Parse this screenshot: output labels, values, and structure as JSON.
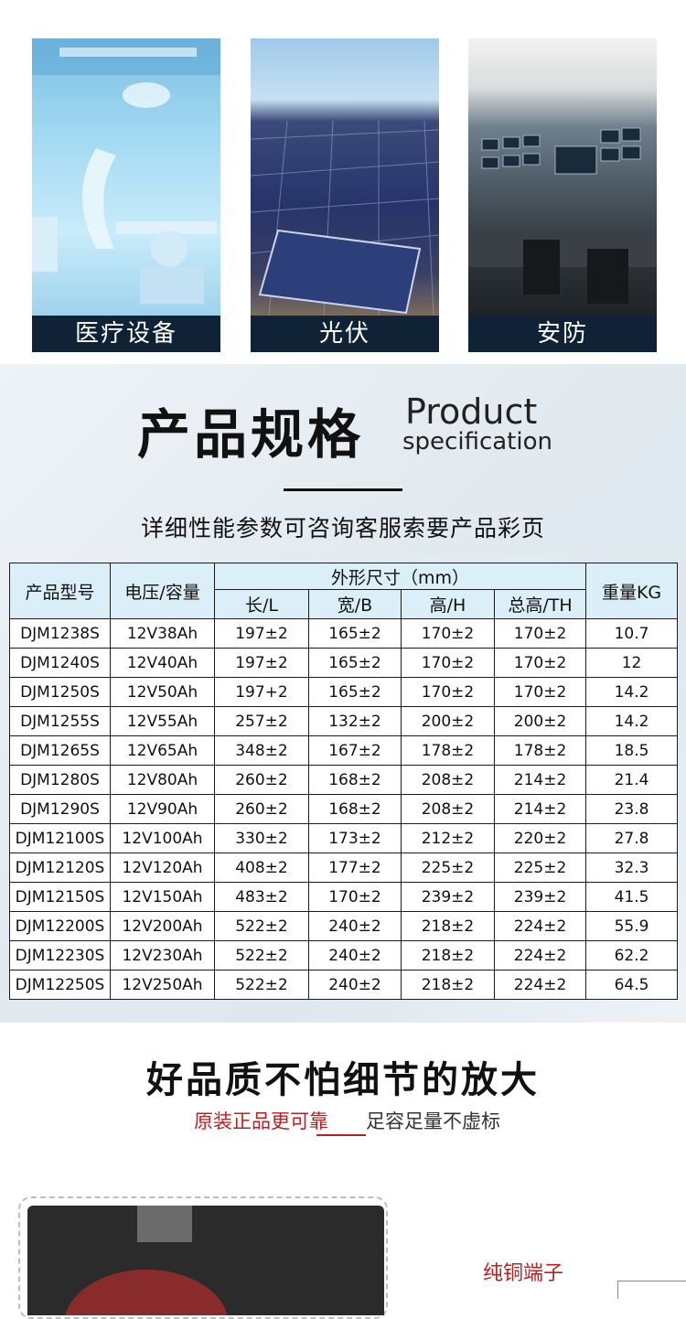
{
  "applications": [
    {
      "caption": "医疗设备"
    },
    {
      "caption": "光伏"
    },
    {
      "caption": "安防"
    }
  ],
  "spec": {
    "title_cn": "产品规格",
    "title_en_1": "Product",
    "title_en_2": "specification",
    "subtitle": "详细性能参数可咨询客服索要产品彩页",
    "headers": {
      "model": "产品型号",
      "voltage_capacity": "电压/容量",
      "dimensions": "外形尺寸（mm）",
      "length": "长/L",
      "width": "宽/B",
      "height": "高/H",
      "total_height": "总高/TH",
      "weight": "重量KG"
    },
    "rows": [
      [
        "DJM1238S",
        "12V38Ah",
        "197±2",
        "165±2",
        "170±2",
        "170±2",
        "10.7"
      ],
      [
        "DJM1240S",
        "12V40Ah",
        "197±2",
        "165±2",
        "170±2",
        "170±2",
        "12"
      ],
      [
        "DJM1250S",
        "12V50Ah",
        "197+2",
        "165±2",
        "170±2",
        "170±2",
        "14.2"
      ],
      [
        "DJM1255S",
        "12V55Ah",
        "257±2",
        "132±2",
        "200±2",
        "200±2",
        "14.2"
      ],
      [
        "DJM1265S",
        "12V65Ah",
        "348±2",
        "167±2",
        "178±2",
        "178±2",
        "18.5"
      ],
      [
        "DJM1280S",
        "12V80Ah",
        "260±2",
        "168±2",
        "208±2",
        "214±2",
        "21.4"
      ],
      [
        "DJM1290S",
        "12V90Ah",
        "260±2",
        "168±2",
        "208±2",
        "214±2",
        "23.8"
      ],
      [
        "DJM12100S",
        "12V100Ah",
        "330±2",
        "173±2",
        "212±2",
        "220±2",
        "27.8"
      ],
      [
        "DJM12120S",
        "12V120Ah",
        "408±2",
        "177±2",
        "225±2",
        "225±2",
        "32.3"
      ],
      [
        "DJM12150S",
        "12V150Ah",
        "483±2",
        "170±2",
        "239±2",
        "239±2",
        "41.5"
      ],
      [
        "DJM12200S",
        "12V200Ah",
        "522±2",
        "240±2",
        "218±2",
        "224±2",
        "55.9"
      ],
      [
        "DJM12230S",
        "12V230Ah",
        "522±2",
        "240±2",
        "218±2",
        "224±2",
        "62.2"
      ],
      [
        "DJM12250S",
        "12V250Ah",
        "522±2",
        "240±2",
        "218±2",
        "224±2",
        "64.5"
      ]
    ]
  },
  "quality": {
    "title": "好品质不怕细节的放大",
    "sub_red": "原装正品更可靠",
    "sub_gray": "足容足量不虚标",
    "detail_label": "纯铜端子"
  }
}
